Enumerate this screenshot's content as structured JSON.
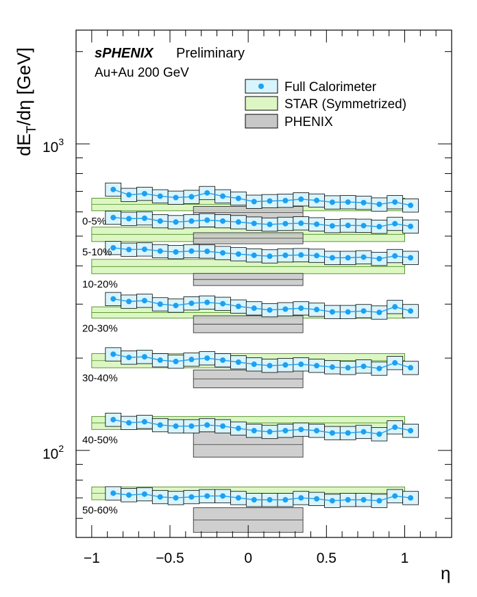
{
  "chart_data": {
    "type": "scatter",
    "title": "sPHENIX",
    "subtitle": "Preliminary",
    "annotation": "Au+Au 200 GeV",
    "xlabel": "η",
    "ylabel_main": "dE",
    "ylabel_sub": "T",
    "ylabel_rest": "/dη [GeV]",
    "xlim": [
      -1.1,
      1.3
    ],
    "ylim": [
      52,
      2350
    ],
    "y_scale": "log",
    "x_ticks": [
      {
        "value": -1,
        "label": "−1"
      },
      {
        "value": -0.5,
        "label": "−0.5"
      },
      {
        "value": 0,
        "label": "0"
      },
      {
        "value": 0.5,
        "label": "0.5"
      },
      {
        "value": 1,
        "label": "1"
      }
    ],
    "y_ticks": [
      {
        "value": 100,
        "base": "10",
        "exp": "2"
      },
      {
        "value": 1000,
        "base": "10",
        "exp": "3"
      }
    ],
    "legend": {
      "position": "top-right",
      "entries": [
        {
          "label": "Full Calorimeter",
          "kind": "point"
        },
        {
          "label": "STAR (Symmetrized)",
          "kind": "star"
        },
        {
          "label": "PHENIX",
          "kind": "phenix"
        }
      ]
    },
    "colors": {
      "point": "#1ea0f0",
      "point_band": "#d8f4fc",
      "star": "#ddf7c4",
      "star_edge": "#4a8a20",
      "phenix": "#c7c7c7",
      "phenix_edge": "#333333"
    },
    "eta_bins": [
      -0.8625,
      -0.7625,
      -0.6625,
      -0.5625,
      -0.4625,
      -0.3625,
      -0.2625,
      -0.1625,
      -0.0625,
      0.0375,
      0.1375,
      0.2375,
      0.3375,
      0.4375,
      0.5375,
      0.6375,
      0.7375,
      0.8375,
      0.9375,
      1.0375
    ],
    "full_calo_sys_frac": 0.05,
    "star_x": [
      -1.0,
      1.0
    ],
    "phenix_x": [
      -0.35,
      0.35
    ],
    "classes": [
      {
        "label": "0-5%",
        "values": [
          710,
          682,
          688,
          675,
          668,
          672,
          692,
          675,
          664,
          648,
          651,
          653,
          660,
          654,
          645,
          646,
          643,
          635,
          646,
          630
        ],
        "star": [
          605,
          665
        ],
        "phenix": [
          570,
          625
        ]
      },
      {
        "label": "5-10%",
        "values": [
          575,
          570,
          572,
          560,
          556,
          560,
          564,
          560,
          556,
          550,
          546,
          549,
          551,
          547,
          540,
          542,
          541,
          537,
          549,
          538
        ],
        "star": [
          480,
          535
        ],
        "phenix": [
          472,
          513
        ]
      },
      {
        "label": "10-20%",
        "values": [
          458,
          452,
          453,
          447,
          444,
          447,
          446,
          441,
          437,
          433,
          430,
          433,
          434,
          432,
          425,
          425,
          427,
          422,
          431,
          425
        ],
        "star": [
          377,
          420
        ],
        "phenix": [
          345,
          378
        ]
      },
      {
        "label": "20-30%",
        "values": [
          312,
          306,
          308,
          300,
          297,
          302,
          304,
          301,
          295,
          291,
          287,
          289,
          291,
          288,
          283,
          283,
          285,
          282,
          294,
          285
        ],
        "star": [
          270,
          294
        ],
        "phenix": [
          242,
          275
        ]
      },
      {
        "label": "30-40%",
        "values": [
          206,
          201,
          202,
          197,
          195,
          198,
          200,
          197,
          194,
          191,
          189,
          190,
          191,
          189,
          187,
          186,
          188,
          185,
          193,
          186
        ],
        "star": [
          186,
          207
        ],
        "phenix": [
          160,
          183
        ]
      },
      {
        "label": "40-50%",
        "values": [
          126,
          123,
          124,
          121,
          120,
          120,
          121,
          120,
          118,
          116,
          115,
          116,
          117,
          116,
          114,
          114,
          115,
          113,
          119,
          116
        ],
        "star": [
          117,
          129
        ],
        "phenix": [
          95,
          115
        ]
      },
      {
        "label": "50-60%",
        "values": [
          72.5,
          71.5,
          72,
          70.5,
          70,
          70.5,
          71,
          71,
          70,
          69,
          69,
          69,
          70,
          69.5,
          68.5,
          69,
          69,
          68.5,
          71,
          70
        ],
        "star": [
          69,
          76
        ],
        "phenix": [
          54,
          65
        ]
      }
    ]
  }
}
